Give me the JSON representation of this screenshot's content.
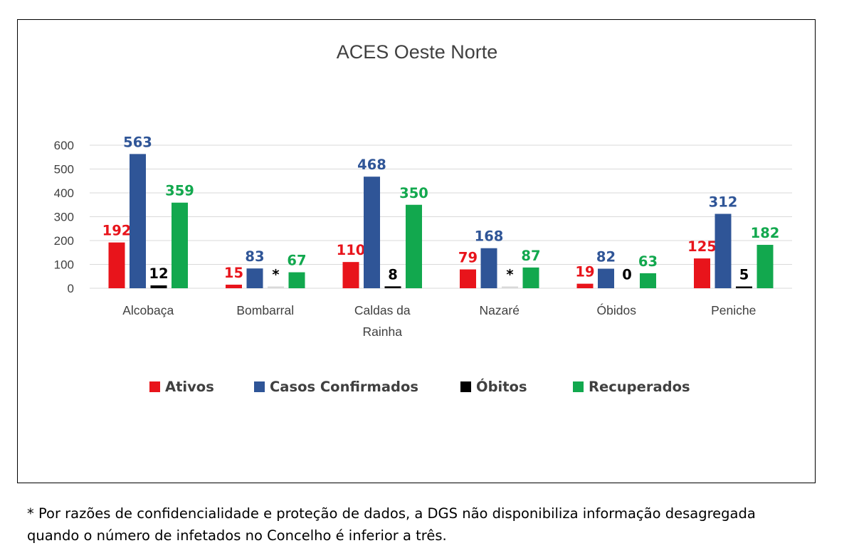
{
  "chart_data": {
    "type": "bar",
    "title": "ACES Oeste Norte",
    "xlabel": "",
    "ylabel": "",
    "ylim": [
      0,
      600
    ],
    "yticks": [
      0,
      100,
      200,
      300,
      400,
      500,
      600
    ],
    "grid": true,
    "legend_position": "bottom",
    "categories": [
      [
        "Alcobaça"
      ],
      [
        "Bombarral"
      ],
      [
        "Caldas da",
        "Rainha"
      ],
      [
        "Nazaré"
      ],
      [
        "Óbidos"
      ],
      [
        "Peniche"
      ]
    ],
    "series": [
      {
        "name": "Ativos",
        "color": "#e8141b",
        "values": [
          192,
          15,
          110,
          79,
          19,
          125
        ],
        "labels": [
          "192",
          "15",
          "110",
          "79",
          "19",
          "125"
        ]
      },
      {
        "name": "Casos Confirmados",
        "color": "#2f5597",
        "values": [
          563,
          83,
          468,
          168,
          82,
          312
        ],
        "labels": [
          "563",
          "83",
          "468",
          "168",
          "82",
          "312"
        ]
      },
      {
        "name": "Óbitos",
        "color": "#000000",
        "values": [
          12,
          0,
          8,
          0,
          0,
          5
        ],
        "labels": [
          "12",
          "*",
          "8",
          "*",
          "0",
          "5"
        ]
      },
      {
        "name": "Recuperados",
        "color": "#12a84e",
        "values": [
          359,
          67,
          350,
          87,
          63,
          182
        ],
        "labels": [
          "359",
          "67",
          "350",
          "87",
          "63",
          "182"
        ]
      }
    ]
  },
  "footnote": {
    "line1": "* Por razões de confidencialidade e proteção de dados, a DGS não disponibiliza informação desagregada",
    "line2": "quando o número de infetados no Concelho é inferior a três."
  }
}
